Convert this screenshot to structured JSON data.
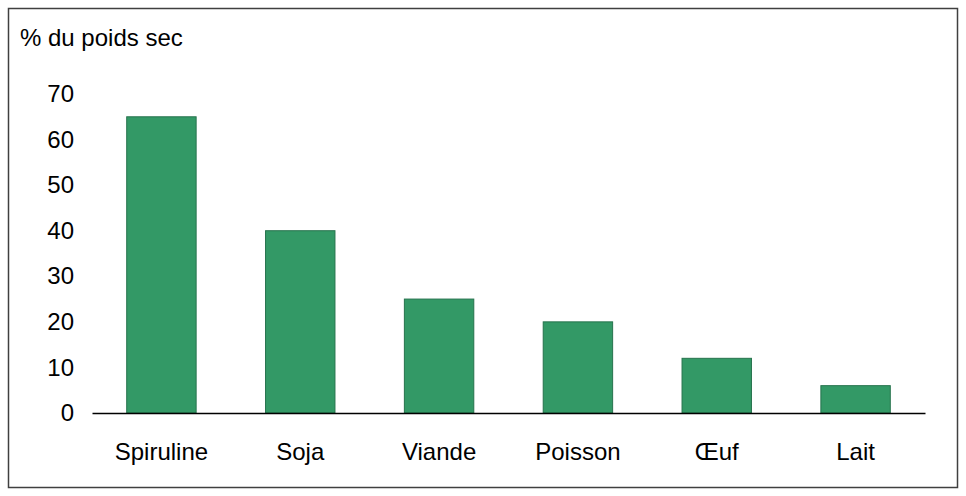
{
  "chart_data": {
    "type": "bar",
    "y_label": "% du poids sec",
    "categories": [
      "Spiruline",
      "Soja",
      "Viande",
      "Poisson",
      "Œuf",
      "Lait"
    ],
    "values": [
      65,
      40,
      25,
      20,
      12,
      6
    ],
    "color": "#339966",
    "ylim": [
      0,
      70
    ],
    "yticks": [
      0,
      10,
      20,
      30,
      40,
      50,
      60,
      70
    ],
    "grid": false
  }
}
